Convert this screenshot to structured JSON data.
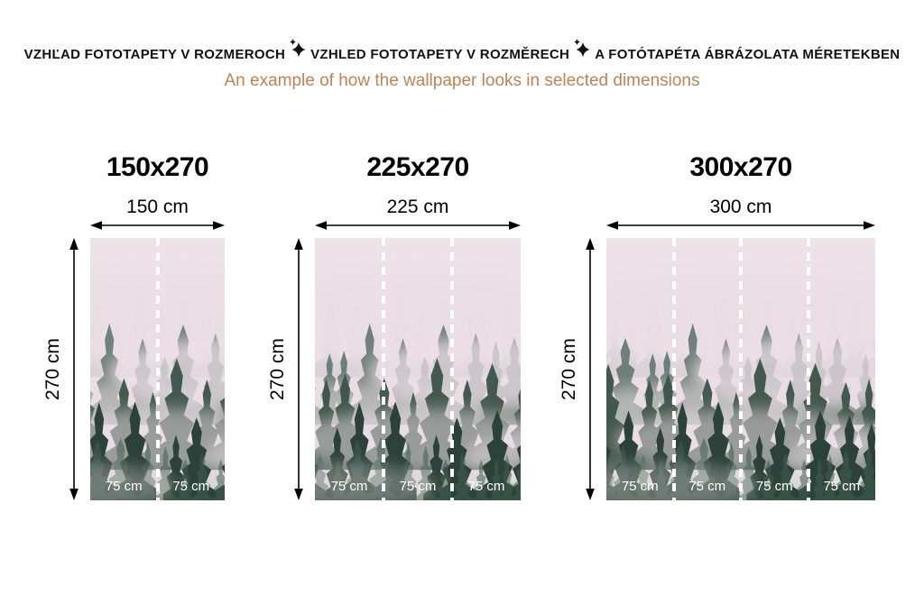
{
  "header": {
    "title_parts": [
      "VZHĽAD FOTOTAPETY V ROZMEROCH",
      "VZHLED FOTOTAPETY V ROZMĚRECH",
      "A FOTÓTAPÉTA ÁBRÁZOLATA MÉRETEKBEN"
    ],
    "separator_icon": "sparkle",
    "title_color": "#111111",
    "subtitle": "An example of how the wallpaper looks in selected dimensions",
    "subtitle_color": "#c08252"
  },
  "panels": [
    {
      "title": "150x270",
      "width_label": "150 cm",
      "height_label": "270 cm",
      "segments": [
        "75 cm",
        "75 cm"
      ]
    },
    {
      "title": "225x270",
      "width_label": "225 cm",
      "height_label": "270 cm",
      "segments": [
        "75 cm",
        "75 cm",
        "75 cm"
      ]
    },
    {
      "title": "300x270",
      "width_label": "300 cm",
      "height_label": "270 cm",
      "segments": [
        "75 cm",
        "75 cm",
        "75 cm",
        "75 cm"
      ]
    }
  ],
  "artwork": {
    "description": "misty pine forest wallpaper preview",
    "sky_top": "#eee3e8",
    "sky_mid": "#e8dde3",
    "sky_bottom": "#d8d6d8",
    "tree_far": "#9aa5a6",
    "tree_mid": "#5b7169",
    "tree_near": "#3c5349",
    "tree_front": "#2c4139",
    "tree_green": "#41604d",
    "fog": "#ecdfe5",
    "divider_color": "#ffffff",
    "segment_label_color": "#ffffff",
    "arrow_color": "#000000"
  }
}
